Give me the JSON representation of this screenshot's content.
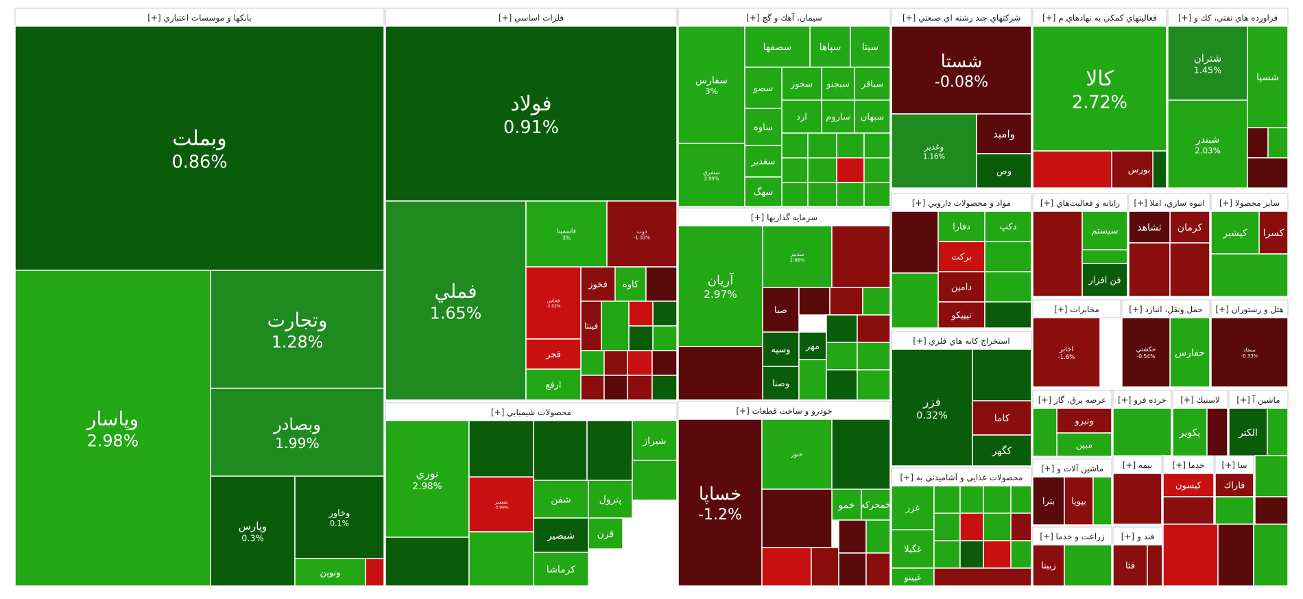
{
  "chart_data": {
    "type": "treemap",
    "colors": {
      "dark_green": "#0a5c0a",
      "mid_green": "#1f8a1f",
      "bright_green": "#22a815",
      "dark_red": "#5a0a0a",
      "mid_red": "#8b0e0e",
      "bright_red": "#c81010"
    },
    "sectors": [
      {
        "name": "بانکها و موسسات اعتباري [+]",
        "tiles": [
          {
            "symbol": "وبملت",
            "change": "0.86%"
          },
          {
            "symbol": "وپاسار",
            "change": "2.98%"
          },
          {
            "symbol": "وتجارت",
            "change": "1.28%"
          },
          {
            "symbol": "وبصادر",
            "change": "1.99%"
          },
          {
            "symbol": "وپارس",
            "change": "0.3%"
          },
          {
            "symbol": "وخاور",
            "change": "0.1%"
          },
          {
            "symbol": "ونوين",
            "change": ""
          }
        ]
      },
      {
        "name": "فلزات اساسي [+]",
        "tiles": [
          {
            "symbol": "فولاد",
            "change": "0.91%"
          },
          {
            "symbol": "فملي",
            "change": "1.65%"
          },
          {
            "symbol": "فاسمينا",
            "change": "3%"
          },
          {
            "symbol": "ذوب",
            "change": "-1.33%"
          },
          {
            "symbol": "فخاس",
            "change": "-2.02%"
          },
          {
            "symbol": "فخوز",
            "change": ""
          },
          {
            "symbol": "كاوه",
            "change": ""
          },
          {
            "symbol": "فجر",
            "change": ""
          },
          {
            "symbol": "ارفع",
            "change": ""
          },
          {
            "symbol": "فينتا",
            "change": ""
          }
        ]
      },
      {
        "name": "سيمان، آهك و گچ [+]",
        "tiles": [
          {
            "symbol": "سفارس",
            "change": "3%"
          },
          {
            "symbol": "سشرق",
            "change": "2.99%"
          },
          {
            "symbol": "سيتا",
            "change": ""
          },
          {
            "symbol": "سپاها",
            "change": ""
          },
          {
            "symbol": "سصفها",
            "change": ""
          },
          {
            "symbol": "سباقر",
            "change": ""
          },
          {
            "symbol": "سبجنو",
            "change": ""
          },
          {
            "symbol": "سخوز",
            "change": ""
          },
          {
            "symbol": "سصو",
            "change": ""
          },
          {
            "symbol": "سبهان",
            "change": ""
          },
          {
            "symbol": "ساروم",
            "change": ""
          },
          {
            "symbol": "ارد",
            "change": ""
          },
          {
            "symbol": "ساوه",
            "change": ""
          },
          {
            "symbol": "سغدير",
            "change": ""
          },
          {
            "symbol": "سهگ",
            "change": ""
          }
        ]
      },
      {
        "name": "شرکتهاي چند رشته اي صنعتي [+]",
        "tiles": [
          {
            "symbol": "شستا",
            "change": "-0.08%"
          },
          {
            "symbol": "وغدير",
            "change": "1.16%"
          },
          {
            "symbol": "واميد",
            "change": ""
          },
          {
            "symbol": "وص",
            "change": ""
          }
        ]
      },
      {
        "name": "فعاليتهاي كمكي به نهادهاي م [+]",
        "tiles": [
          {
            "symbol": "كالا",
            "change": "2.72%"
          },
          {
            "symbol": "بورس",
            "change": ""
          }
        ]
      },
      {
        "name": "فراورده هاي نفتي، كك و [+]",
        "tiles": [
          {
            "symbol": "شتران",
            "change": "1.45%"
          },
          {
            "symbol": "شبندر",
            "change": "2.03%"
          },
          {
            "symbol": "شسپا",
            "change": ""
          }
        ]
      },
      {
        "name": "سرمايه گذاريها [+]",
        "tiles": [
          {
            "symbol": "آريان",
            "change": "2.97%"
          },
          {
            "symbol": "سدبير",
            "change": "2.96%"
          },
          {
            "symbol": "صبا",
            "change": ""
          },
          {
            "symbol": "وسپه",
            "change": ""
          },
          {
            "symbol": "وصنا",
            "change": ""
          },
          {
            "symbol": "مهر",
            "change": ""
          }
        ]
      },
      {
        "name": "مواد و محصولات دارويي [+]",
        "tiles": [
          {
            "symbol": "دفارا",
            "change": ""
          },
          {
            "symbol": "بركت",
            "change": ""
          },
          {
            "symbol": "دامين",
            "change": ""
          },
          {
            "symbol": "تيپيكو",
            "change": ""
          },
          {
            "symbol": "دكپ",
            "change": ""
          }
        ]
      },
      {
        "name": "رايانه و فعاليت‌هاي [+]",
        "tiles": [
          {
            "symbol": "سيستم",
            "change": ""
          },
          {
            "symbol": "فن افزار",
            "change": ""
          }
        ]
      },
      {
        "name": "انبوه سازي، املا [+]",
        "tiles": [
          {
            "symbol": "كرمان",
            "change": ""
          },
          {
            "symbol": "ثشاهد",
            "change": ""
          }
        ]
      },
      {
        "name": "ساير محصولا [+]",
        "tiles": [
          {
            "symbol": "كسرا",
            "change": ""
          },
          {
            "symbol": "كپشير",
            "change": ""
          }
        ]
      },
      {
        "name": "استخراج كانه هاي فلزي [+]",
        "tiles": [
          {
            "symbol": "فزر",
            "change": "0.32%"
          },
          {
            "symbol": "كاما",
            "change": ""
          },
          {
            "symbol": "كگهر",
            "change": ""
          }
        ]
      },
      {
        "name": "مخابرات [+]",
        "tiles": [
          {
            "symbol": "اخابر",
            "change": "-1.6%"
          }
        ]
      },
      {
        "name": "حمل ونقل، انبارد [+]",
        "tiles": [
          {
            "symbol": "حفارس",
            "change": ""
          },
          {
            "symbol": "حكشتي",
            "change": "-0.54%"
          }
        ]
      },
      {
        "name": "هتل و رستوران [+]",
        "tiles": [
          {
            "symbol": "سحاد",
            "change": "-0.33%"
          }
        ]
      },
      {
        "name": "محصولات شيميايي [+]",
        "tiles": [
          {
            "symbol": "نوري",
            "change": "2.98%"
          },
          {
            "symbol": "شيراز",
            "change": ""
          },
          {
            "symbol": "شفن",
            "change": ""
          },
          {
            "symbol": "پترول",
            "change": ""
          },
          {
            "symbol": "شبصير",
            "change": ""
          },
          {
            "symbol": "كرماشا",
            "change": ""
          },
          {
            "symbol": "قرن",
            "change": ""
          },
          {
            "symbol": "شغدير",
            "change": "-3.99%"
          }
        ]
      },
      {
        "name": "خودرو و ساخت قطعات [+]",
        "tiles": [
          {
            "symbol": "خساپا",
            "change": "-1.2%"
          },
          {
            "symbol": "ختور",
            "change": ""
          },
          {
            "symbol": "خمو",
            "change": ""
          },
          {
            "symbol": "خمحركه",
            "change": ""
          }
        ]
      },
      {
        "name": "محصولات غذايي و آشاميدني به [+]",
        "tiles": [
          {
            "symbol": "غزر",
            "change": ""
          },
          {
            "symbol": "غگيلا",
            "change": ""
          },
          {
            "symbol": "غپينو",
            "change": ""
          }
        ]
      },
      {
        "name": "عرضه برق، گاز [+]",
        "tiles": [
          {
            "symbol": "ونيرو",
            "change": ""
          },
          {
            "symbol": "مبين",
            "change": ""
          }
        ]
      },
      {
        "name": "ماشين آلات و [+]",
        "tiles": [
          {
            "symbol": "بترا",
            "change": ""
          },
          {
            "symbol": "بپويا",
            "change": ""
          }
        ]
      },
      {
        "name": "زراعت و خدما [+]",
        "tiles": [
          {
            "symbol": "زبينا",
            "change": ""
          }
        ]
      },
      {
        "name": "لاستيك [+]",
        "tiles": [
          {
            "symbol": "پكوير",
            "change": ""
          }
        ]
      },
      {
        "name": "ماشين آ [+]",
        "tiles": [
          {
            "symbol": "الكتر",
            "change": ""
          }
        ]
      },
      {
        "name": "خدما [+]",
        "tiles": [
          {
            "symbol": "كيسون",
            "change": ""
          }
        ]
      },
      {
        "name": "سا [+]",
        "tiles": [
          {
            "symbol": "فاراك",
            "change": ""
          }
        ]
      },
      {
        "name": "قند و [+]",
        "tiles": [
          {
            "symbol": "قثا",
            "change": ""
          }
        ]
      },
      {
        "name": "خرده فرو [+]",
        "tiles": []
      },
      {
        "name": "بيمه [+]",
        "tiles": []
      }
    ]
  }
}
